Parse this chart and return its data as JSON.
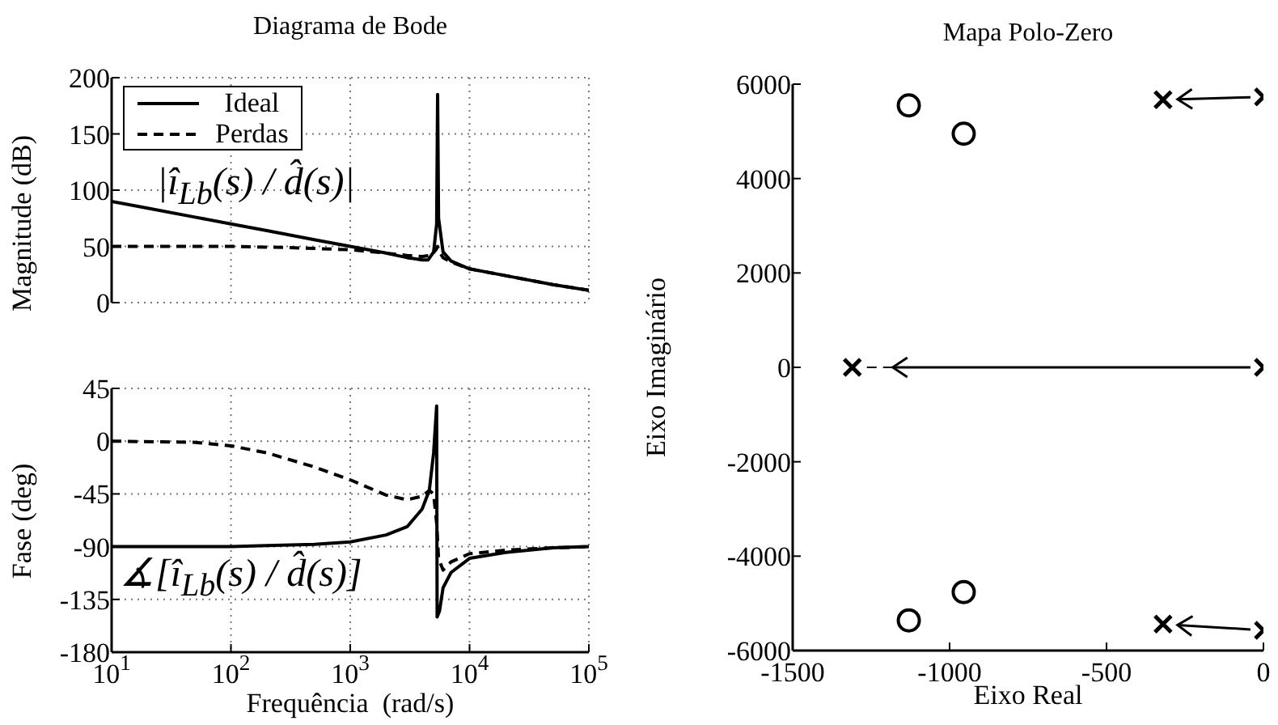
{
  "chart_data": [
    {
      "type": "line",
      "title": "Diagrama de Bode",
      "ylabel": "Magnitude (dB)",
      "xlim": [
        10,
        100000
      ],
      "log": "x",
      "ylim": [
        0,
        200
      ],
      "yticks": [
        0,
        50,
        100,
        150,
        200
      ],
      "xticks": [
        10,
        100,
        1000,
        10000,
        100000
      ],
      "tick_labels": "y",
      "grid": true,
      "legend": "top left",
      "marker": "none",
      "annotations": [
        "|î$_{Lb}$(s) / d̂(s)|"
      ],
      "series": [
        {
          "name": "Ideal",
          "color": "#000000",
          "line_style": "solid",
          "x": [
            10,
            20,
            50,
            100,
            200,
            500,
            1000,
            2000,
            3000,
            4000,
            4500,
            5000,
            5300,
            5400,
            5500,
            6000,
            7000,
            10000,
            20000,
            50000,
            100000
          ],
          "values": [
            90,
            84,
            76,
            70,
            64,
            56,
            50,
            44,
            40,
            38,
            38,
            45,
            70,
            185,
            75,
            45,
            37,
            30,
            24,
            16,
            11
          ]
        },
        {
          "name": "Perdas",
          "color": "#000000",
          "line_style": "dashed",
          "x": [
            10,
            100,
            300,
            1000,
            2000,
            3000,
            4000,
            4800,
            5300,
            5400,
            5600,
            6000,
            7000,
            10000,
            20000,
            50000,
            100000
          ],
          "values": [
            50,
            50,
            49,
            47,
            44,
            42,
            41,
            42,
            48,
            50,
            45,
            40,
            36,
            30,
            24,
            16,
            11
          ]
        }
      ]
    },
    {
      "type": "line",
      "xlabel": "Frequência  (rad/s)",
      "ylabel": "Fase (deg)",
      "xlim": [
        10,
        100000
      ],
      "log": "x",
      "ylim": [
        -180,
        45
      ],
      "yticks": [
        -180,
        -135,
        -90,
        -45,
        0,
        45
      ],
      "xticks": [
        {
          "value": 10,
          "label": "10$^{1}$"
        },
        {
          "value": 100,
          "label": "10$^{2}$"
        },
        {
          "value": 1000,
          "label": "10$^{3}$"
        },
        {
          "value": 10000,
          "label": "10$^{4}$"
        },
        {
          "value": 100000,
          "label": "10$^{5}$"
        }
      ],
      "grid": true,
      "marker": "none",
      "annotations": [
        "∡[î$_{Lb}$(s) / d̂(s)]"
      ],
      "series": [
        {
          "color": "#000000",
          "line_style": "solid",
          "x": [
            10,
            100,
            200,
            500,
            1000,
            2000,
            3000,
            4000,
            4600,
            5000,
            5300,
            5350,
            5600,
            6000,
            7000,
            10000,
            20000,
            50000,
            100000
          ],
          "values": [
            -90,
            -90,
            -89,
            -88,
            -86,
            -80,
            -73,
            -58,
            -42,
            -10,
            30,
            -150,
            -145,
            -125,
            -112,
            -100,
            -95,
            -91,
            -90
          ]
        },
        {
          "color": "#000000",
          "line_style": "dashed",
          "x": [
            10,
            50,
            100,
            200,
            500,
            1000,
            2000,
            3000,
            4000,
            4600,
            5000,
            5300,
            5500,
            6000,
            7000,
            10000,
            20000,
            50000,
            100000
          ],
          "values": [
            0,
            -1,
            -4,
            -10,
            -22,
            -33,
            -46,
            -50,
            -47,
            -42,
            -45,
            -70,
            -100,
            -110,
            -103,
            -96,
            -93,
            -91,
            -90
          ]
        }
      ]
    },
    {
      "type": "scatter",
      "title": "Mapa Polo-Zero",
      "xlabel": "Eixo Real",
      "ylabel": "Eixo Imaginário",
      "xlim": [
        -1500,
        0
      ],
      "xticks": [
        -1500,
        -1000,
        -500,
        0
      ],
      "ylim": [
        -6000,
        6000
      ],
      "yticks": [
        -6000,
        -4000,
        -2000,
        0,
        2000,
        4000,
        6000
      ],
      "series": [
        {
          "color": "#000000",
          "marker": "circle",
          "x": [
            -1130,
            -1130
          ],
          "values": [
            5550,
            -5360
          ]
        },
        {
          "color": "#000000",
          "marker": "circle",
          "x": [
            -955,
            -955
          ],
          "values": [
            4950,
            -4760
          ]
        },
        {
          "color": "#000000",
          "marker": "cross",
          "x": [
            0,
            0,
            0
          ],
          "values": [
            5730,
            0,
            -5570
          ]
        },
        {
          "color": "#000000",
          "marker": "cross",
          "x": [
            -320,
            -1310,
            -320
          ],
          "values": [
            5670,
            0,
            -5440
          ]
        }
      ]
    }
  ]
}
